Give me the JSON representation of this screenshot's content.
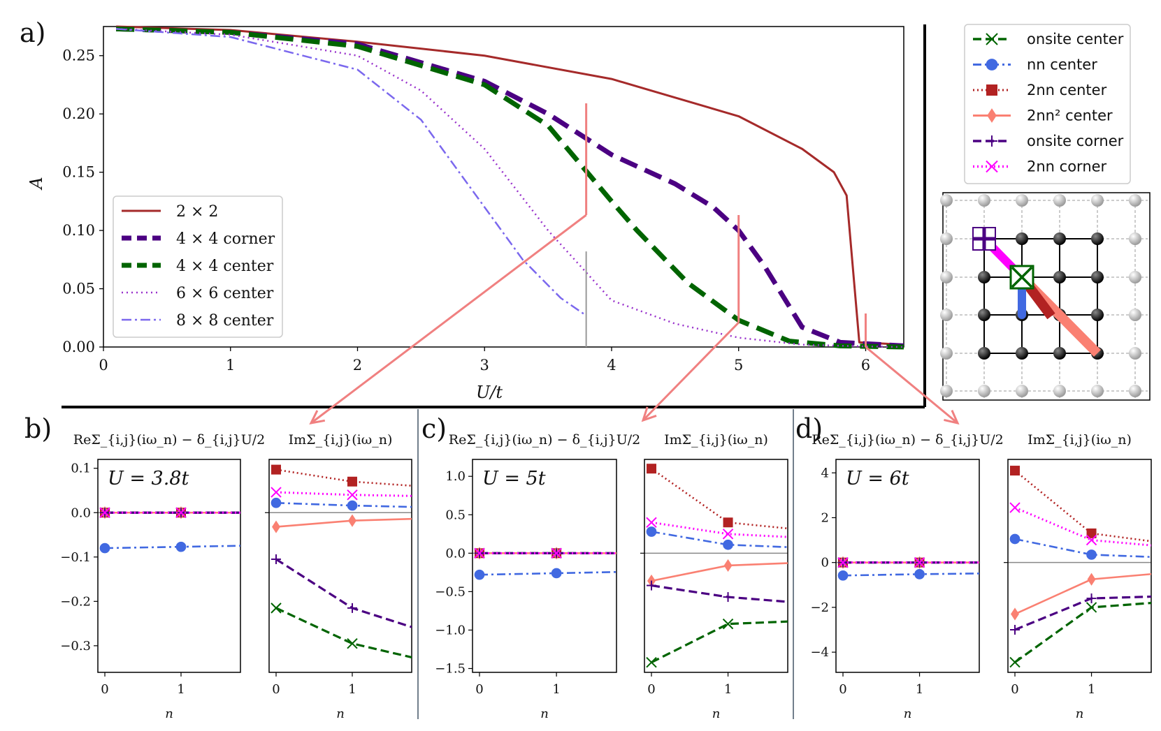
{
  "colors": {
    "c2x2": "#a52a2a",
    "c4corner": "#4b0082",
    "c4center": "#006400",
    "c6": "#9932cc",
    "c8": "#7b68ee",
    "onsite_center": "#006400",
    "nn_center": "#4169e1",
    "nn2_center": "#b22222",
    "nn2sq_center": "#fa8072",
    "onsite_corner": "#4b0082",
    "nn2_corner": "#ff00ff",
    "pointer": "#f08080"
  },
  "labels": {
    "a": "a)",
    "b": "b)",
    "c": "c)",
    "d": "d)"
  },
  "legend_top": {
    "onsite_center": "onsite center",
    "nn_center": "nn center",
    "nn2_center": "2nn center",
    "nn2sq_center": "2nn² center",
    "onsite_corner": "onsite corner",
    "nn2_corner": "2nn corner"
  },
  "chart_data": [
    {
      "id": "a",
      "type": "line",
      "xlabel": "U/t",
      "ylabel": "A",
      "xlim": [
        0,
        6.3
      ],
      "ylim": [
        0,
        0.275
      ],
      "xticks": [
        "0",
        "1",
        "2",
        "3",
        "4",
        "5",
        "6"
      ],
      "yticks": [
        "0.00",
        "0.05",
        "0.10",
        "0.15",
        "0.20",
        "0.25"
      ],
      "markers_x": [
        3.8,
        5,
        6
      ],
      "series": [
        {
          "key": "c2x2",
          "name": "2 × 2",
          "x": [
            0.1,
            1,
            2,
            3,
            4,
            5,
            5.5,
            5.75,
            5.85,
            5.95,
            6.3
          ],
          "y": [
            0.275,
            0.272,
            0.262,
            0.25,
            0.23,
            0.198,
            0.17,
            0.15,
            0.13,
            0.004,
            0.002
          ]
        },
        {
          "key": "c4corner",
          "name": "4 × 4 corner",
          "x": [
            0.1,
            1,
            2,
            3,
            3.5,
            4,
            4.5,
            4.8,
            5,
            5.2,
            5.5,
            5.8,
            6.3
          ],
          "y": [
            0.273,
            0.27,
            0.26,
            0.228,
            0.2,
            0.165,
            0.14,
            0.12,
            0.1,
            0.07,
            0.017,
            0.004,
            0.001
          ]
        },
        {
          "key": "c4center",
          "name": "4 × 4 center",
          "x": [
            0.1,
            1,
            2,
            3,
            3.5,
            4,
            4.2,
            4.6,
            5,
            5.4,
            5.8,
            6.3
          ],
          "y": [
            0.273,
            0.27,
            0.258,
            0.225,
            0.19,
            0.125,
            0.1,
            0.055,
            0.023,
            0.005,
            0.001,
            0.0
          ]
        },
        {
          "key": "c6",
          "name": "6 × 6 center",
          "x": [
            0.1,
            1,
            2,
            2.5,
            3,
            3.5,
            4,
            4.5,
            5,
            5.5,
            6,
            6.3
          ],
          "y": [
            0.273,
            0.268,
            0.25,
            0.22,
            0.17,
            0.1,
            0.04,
            0.02,
            0.008,
            0.002,
            0.0005,
            0.0
          ]
        },
        {
          "key": "c8",
          "name": "8 × 8 center",
          "x": [
            0.1,
            1,
            2,
            2.5,
            3,
            3.3,
            3.6,
            3.8
          ],
          "y": [
            0.273,
            0.266,
            0.238,
            0.195,
            0.12,
            0.075,
            0.042,
            0.027
          ]
        }
      ]
    },
    {
      "id": "b",
      "type": "line",
      "annotation": "U = 3.8t",
      "re_title": "ReΣ_{i,j}(iω_n) − δ_{i,j}U/2",
      "im_title": "ImΣ_{i,j}(iω_n)",
      "xlabel": "n",
      "xticks": [
        "0",
        "1"
      ],
      "re_ylim": [
        -0.36,
        0.12
      ],
      "re_yticks": [
        "0.1",
        "0.0",
        "−0.1",
        "−0.2",
        "−0.3"
      ],
      "re_tick_values": [
        0.1,
        0.0,
        -0.1,
        -0.2,
        -0.3
      ],
      "im_ylim": [
        -0.36,
        0.12
      ],
      "re": {
        "nn_center": [
          -0.08,
          -0.077,
          -0.074
        ]
      },
      "im": {
        "onsite_center": [
          -0.215,
          -0.295,
          -0.335
        ],
        "nn_center": [
          0.022,
          0.016,
          0.012
        ],
        "nn2_center": [
          0.097,
          0.07,
          0.058
        ],
        "nn2sq_center": [
          -0.032,
          -0.018,
          -0.013
        ],
        "onsite_corner": [
          -0.105,
          -0.215,
          -0.27
        ],
        "nn2_corner": [
          0.046,
          0.04,
          0.037
        ]
      }
    },
    {
      "id": "c",
      "type": "line",
      "annotation": "U = 5t",
      "re_title": "ReΣ_{i,j}(iω_n) − δ_{i,j}U/2",
      "im_title": "ImΣ_{i,j}(iω_n)",
      "xlabel": "n",
      "xticks": [
        "0",
        "1"
      ],
      "re_ylim": [
        -1.55,
        1.22
      ],
      "re_yticks": [
        "1.0",
        "0.5",
        "0.0",
        "−0.5",
        "−1.0",
        "−1.5"
      ],
      "re_tick_values": [
        1.0,
        0.5,
        0.0,
        -0.5,
        -1.0,
        -1.5
      ],
      "im_ylim": [
        -1.55,
        1.22
      ],
      "re": {
        "nn_center": [
          -0.28,
          -0.26,
          -0.24
        ]
      },
      "im": {
        "onsite_center": [
          -1.42,
          -0.92,
          -0.88
        ],
        "nn_center": [
          0.28,
          0.11,
          0.07
        ],
        "nn2_center": [
          1.1,
          0.4,
          0.3
        ],
        "nn2sq_center": [
          -0.36,
          -0.16,
          -0.12
        ],
        "onsite_corner": [
          -0.42,
          -0.57,
          -0.65
        ],
        "nn2_corner": [
          0.4,
          0.25,
          0.2
        ]
      }
    },
    {
      "id": "d",
      "type": "line",
      "annotation": "U = 6t",
      "re_title": "ReΣ_{i,j}(iω_n) − δ_{i,j}U/2",
      "im_title": "ImΣ_{i,j}(iω_n)",
      "xlabel": "n",
      "xticks": [
        "0",
        "1"
      ],
      "re_ylim": [
        -4.9,
        4.6
      ],
      "re_yticks": [
        "4",
        "2",
        "0",
        "−2",
        "−4"
      ],
      "re_tick_values": [
        4,
        2,
        0,
        -2,
        -4
      ],
      "im_ylim": [
        -4.9,
        4.6
      ],
      "re": {
        "nn_center": [
          -0.58,
          -0.52,
          -0.48
        ]
      },
      "im": {
        "onsite_center": [
          -4.45,
          -2.0,
          -1.75
        ],
        "nn_center": [
          1.05,
          0.35,
          0.22
        ],
        "nn2_center": [
          4.1,
          1.3,
          0.85
        ],
        "nn2sq_center": [
          -2.3,
          -0.75,
          -0.45
        ],
        "onsite_corner": [
          -3.0,
          -1.6,
          -1.5
        ],
        "nn2_corner": [
          2.45,
          1.0,
          0.7
        ]
      }
    }
  ]
}
